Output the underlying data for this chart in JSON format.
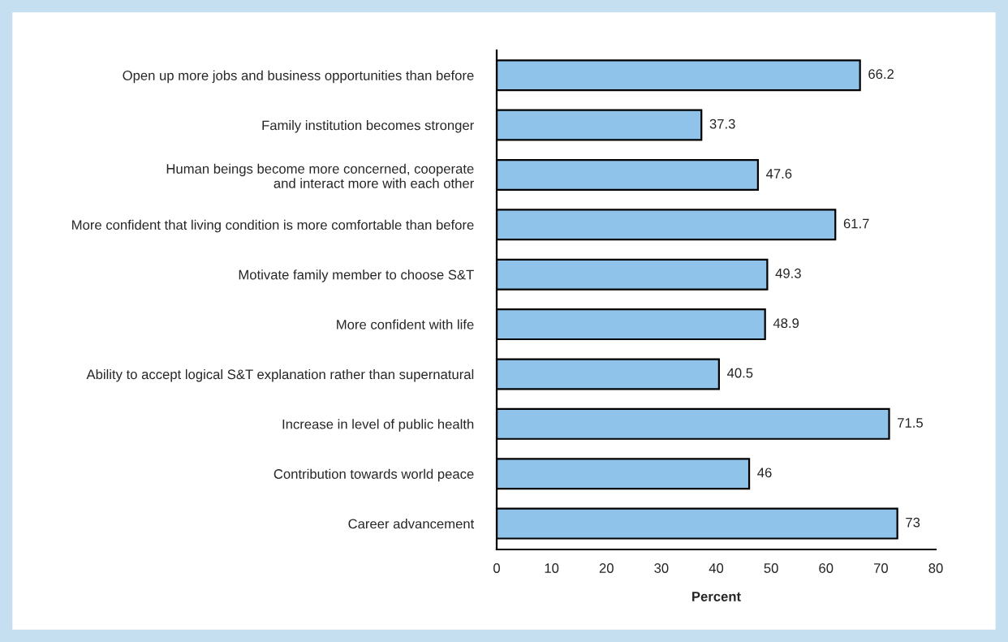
{
  "chart_data": {
    "type": "bar",
    "orientation": "horizontal",
    "xlabel": "Percent",
    "categories": [
      "Open up more jobs and business opportunities than before",
      "Family institution becomes stronger",
      "Human beings become more concerned, cooperate\nand interact more with each other",
      "More confident that living condition is more comfortable than before",
      "Motivate family member to choose S&T",
      "More confident with life",
      "Ability to accept logical S&T explanation rather than supernatural",
      "Increase in level of public health",
      "Contribution towards world peace",
      "Career advancement"
    ],
    "values": [
      66.2,
      37.3,
      47.6,
      61.7,
      49.3,
      48.9,
      40.5,
      71.5,
      46,
      73
    ],
    "color": "#8fc3ea",
    "xlim": [
      0,
      80
    ],
    "xticks": [
      0,
      10,
      20,
      30,
      40,
      50,
      60,
      70,
      80
    ],
    "grid": false,
    "legend": false,
    "data_labels": true
  }
}
